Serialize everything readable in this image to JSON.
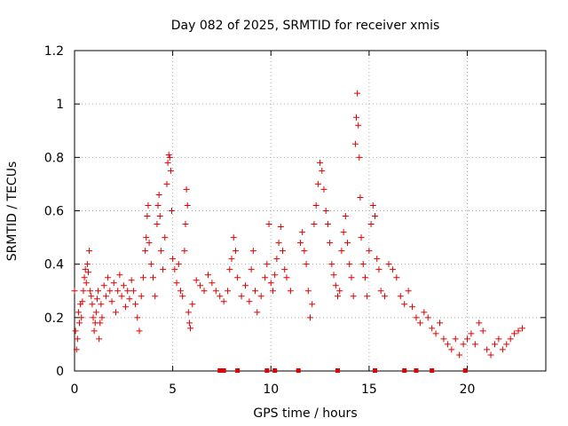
{
  "chart_data": {
    "type": "scatter",
    "title": "Day 082 of 2025, SRMTID for receiver xmis",
    "xlabel": "GPS time / hours",
    "ylabel": "SRMTID / TECUs",
    "xlim": [
      0,
      24
    ],
    "ylim": [
      0,
      1.2
    ],
    "xticks": [
      0,
      5,
      10,
      15,
      20
    ],
    "xtick_labels": [
      "0",
      "5",
      "10",
      "15",
      "20"
    ],
    "yticks": [
      0,
      0.2,
      0.4,
      0.6,
      0.8,
      1,
      1.2
    ],
    "ytick_labels": [
      "0",
      "0.2",
      "0.4",
      "0.6",
      "0.8",
      "1",
      "1.2"
    ],
    "grid": true,
    "marker": "+",
    "color": "#e00000",
    "series": [
      {
        "name": "SRMTID",
        "points": [
          [
            0.0,
            0.3
          ],
          [
            0.05,
            0.15
          ],
          [
            0.1,
            0.08
          ],
          [
            0.15,
            0.12
          ],
          [
            0.2,
            0.22
          ],
          [
            0.25,
            0.18
          ],
          [
            0.3,
            0.25
          ],
          [
            0.35,
            0.2
          ],
          [
            0.4,
            0.26
          ],
          [
            0.45,
            0.3
          ],
          [
            0.5,
            0.35
          ],
          [
            0.55,
            0.38
          ],
          [
            0.6,
            0.33
          ],
          [
            0.65,
            0.4
          ],
          [
            0.7,
            0.37
          ],
          [
            0.75,
            0.45
          ],
          [
            0.8,
            0.3
          ],
          [
            0.85,
            0.28
          ],
          [
            0.9,
            0.25
          ],
          [
            0.95,
            0.2
          ],
          [
            1.0,
            0.15
          ],
          [
            1.05,
            0.18
          ],
          [
            1.1,
            0.22
          ],
          [
            1.15,
            0.27
          ],
          [
            1.2,
            0.3
          ],
          [
            1.25,
            0.12
          ],
          [
            1.3,
            0.18
          ],
          [
            1.35,
            0.25
          ],
          [
            1.4,
            0.2
          ],
          [
            1.5,
            0.32
          ],
          [
            1.6,
            0.28
          ],
          [
            1.7,
            0.35
          ],
          [
            1.8,
            0.3
          ],
          [
            1.9,
            0.26
          ],
          [
            2.0,
            0.33
          ],
          [
            2.1,
            0.22
          ],
          [
            2.2,
            0.3
          ],
          [
            2.3,
            0.36
          ],
          [
            2.4,
            0.28
          ],
          [
            2.5,
            0.32
          ],
          [
            2.6,
            0.24
          ],
          [
            2.7,
            0.3
          ],
          [
            2.8,
            0.27
          ],
          [
            2.9,
            0.34
          ],
          [
            3.0,
            0.3
          ],
          [
            3.1,
            0.25
          ],
          [
            3.2,
            0.2
          ],
          [
            3.3,
            0.15
          ],
          [
            3.4,
            0.28
          ],
          [
            3.5,
            0.35
          ],
          [
            3.6,
            0.45
          ],
          [
            3.65,
            0.5
          ],
          [
            3.7,
            0.58
          ],
          [
            3.75,
            0.62
          ],
          [
            3.8,
            0.48
          ],
          [
            3.9,
            0.4
          ],
          [
            4.0,
            0.35
          ],
          [
            4.1,
            0.28
          ],
          [
            4.2,
            0.55
          ],
          [
            4.25,
            0.62
          ],
          [
            4.3,
            0.66
          ],
          [
            4.35,
            0.58
          ],
          [
            4.4,
            0.45
          ],
          [
            4.5,
            0.38
          ],
          [
            4.6,
            0.5
          ],
          [
            4.7,
            0.7
          ],
          [
            4.75,
            0.78
          ],
          [
            4.8,
            0.81
          ],
          [
            4.85,
            0.8
          ],
          [
            4.9,
            0.75
          ],
          [
            4.95,
            0.6
          ],
          [
            5.0,
            0.42
          ],
          [
            5.1,
            0.38
          ],
          [
            5.2,
            0.33
          ],
          [
            5.3,
            0.4
          ],
          [
            5.4,
            0.3
          ],
          [
            5.5,
            0.28
          ],
          [
            5.6,
            0.45
          ],
          [
            5.65,
            0.55
          ],
          [
            5.7,
            0.68
          ],
          [
            5.75,
            0.62
          ],
          [
            5.8,
            0.22
          ],
          [
            5.85,
            0.18
          ],
          [
            5.9,
            0.16
          ],
          [
            6.0,
            0.25
          ],
          [
            6.2,
            0.34
          ],
          [
            6.4,
            0.32
          ],
          [
            6.6,
            0.3
          ],
          [
            6.8,
            0.36
          ],
          [
            7.0,
            0.33
          ],
          [
            7.2,
            0.3
          ],
          [
            7.4,
            0.28
          ],
          [
            7.6,
            0.26
          ],
          [
            7.8,
            0.3
          ],
          [
            7.9,
            0.38
          ],
          [
            8.0,
            0.42
          ],
          [
            8.1,
            0.5
          ],
          [
            8.2,
            0.45
          ],
          [
            8.3,
            0.35
          ],
          [
            8.5,
            0.28
          ],
          [
            8.7,
            0.32
          ],
          [
            8.9,
            0.26
          ],
          [
            9.0,
            0.38
          ],
          [
            9.1,
            0.45
          ],
          [
            9.2,
            0.3
          ],
          [
            9.3,
            0.22
          ],
          [
            9.5,
            0.28
          ],
          [
            9.7,
            0.35
          ],
          [
            9.8,
            0.4
          ],
          [
            9.9,
            0.55
          ],
          [
            10.0,
            0.33
          ],
          [
            10.1,
            0.3
          ],
          [
            10.2,
            0.36
          ],
          [
            10.3,
            0.42
          ],
          [
            10.4,
            0.48
          ],
          [
            10.5,
            0.54
          ],
          [
            10.6,
            0.45
          ],
          [
            10.7,
            0.38
          ],
          [
            10.8,
            0.35
          ],
          [
            11.0,
            0.3
          ],
          [
            11.5,
            0.48
          ],
          [
            11.6,
            0.52
          ],
          [
            11.7,
            0.45
          ],
          [
            11.8,
            0.4
          ],
          [
            11.9,
            0.3
          ],
          [
            12.0,
            0.2
          ],
          [
            12.1,
            0.25
          ],
          [
            12.2,
            0.55
          ],
          [
            12.3,
            0.62
          ],
          [
            12.4,
            0.7
          ],
          [
            12.5,
            0.78
          ],
          [
            12.6,
            0.75
          ],
          [
            12.7,
            0.68
          ],
          [
            12.8,
            0.6
          ],
          [
            12.9,
            0.55
          ],
          [
            13.0,
            0.48
          ],
          [
            13.1,
            0.4
          ],
          [
            13.2,
            0.36
          ],
          [
            13.3,
            0.32
          ],
          [
            13.4,
            0.28
          ],
          [
            13.5,
            0.3
          ],
          [
            13.6,
            0.45
          ],
          [
            13.7,
            0.52
          ],
          [
            13.8,
            0.58
          ],
          [
            13.9,
            0.48
          ],
          [
            14.0,
            0.4
          ],
          [
            14.1,
            0.35
          ],
          [
            14.2,
            0.28
          ],
          [
            14.3,
            0.85
          ],
          [
            14.35,
            0.95
          ],
          [
            14.4,
            1.04
          ],
          [
            14.45,
            0.92
          ],
          [
            14.5,
            0.8
          ],
          [
            14.55,
            0.65
          ],
          [
            14.6,
            0.5
          ],
          [
            14.7,
            0.4
          ],
          [
            14.8,
            0.35
          ],
          [
            14.9,
            0.28
          ],
          [
            15.0,
            0.45
          ],
          [
            15.1,
            0.55
          ],
          [
            15.2,
            0.62
          ],
          [
            15.3,
            0.58
          ],
          [
            15.4,
            0.42
          ],
          [
            15.5,
            0.38
          ],
          [
            15.6,
            0.3
          ],
          [
            15.8,
            0.28
          ],
          [
            16.0,
            0.4
          ],
          [
            16.2,
            0.38
          ],
          [
            16.4,
            0.35
          ],
          [
            16.6,
            0.28
          ],
          [
            16.8,
            0.25
          ],
          [
            17.0,
            0.3
          ],
          [
            17.2,
            0.24
          ],
          [
            17.4,
            0.2
          ],
          [
            17.6,
            0.18
          ],
          [
            17.8,
            0.22
          ],
          [
            18.0,
            0.2
          ],
          [
            18.2,
            0.16
          ],
          [
            18.4,
            0.14
          ],
          [
            18.6,
            0.18
          ],
          [
            18.8,
            0.12
          ],
          [
            19.0,
            0.1
          ],
          [
            19.2,
            0.08
          ],
          [
            19.4,
            0.12
          ],
          [
            19.6,
            0.06
          ],
          [
            19.8,
            0.1
          ],
          [
            20.0,
            0.12
          ],
          [
            20.2,
            0.14
          ],
          [
            20.4,
            0.1
          ],
          [
            20.6,
            0.18
          ],
          [
            20.8,
            0.15
          ],
          [
            21.0,
            0.08
          ],
          [
            21.2,
            0.06
          ],
          [
            21.4,
            0.1
          ],
          [
            21.6,
            0.12
          ],
          [
            21.8,
            0.08
          ],
          [
            22.0,
            0.1
          ],
          [
            22.2,
            0.12
          ],
          [
            22.4,
            0.14
          ],
          [
            22.6,
            0.15
          ],
          [
            22.8,
            0.16
          ]
        ]
      }
    ],
    "zero_markers_x": [
      7.4,
      7.6,
      8.3,
      9.8,
      10.2,
      11.4,
      13.4,
      15.3,
      16.8,
      17.4,
      18.2,
      19.9
    ]
  }
}
